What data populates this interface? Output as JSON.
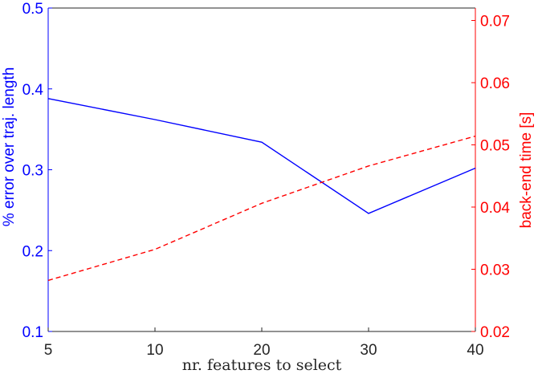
{
  "chart_data": {
    "type": "line",
    "x": [
      5,
      10,
      20,
      30,
      40
    ],
    "x_tick_labels": [
      "5",
      "10",
      "20",
      "30",
      "40"
    ],
    "xlabel": "nr. features to select",
    "ylabel_left": "% error over traj. length",
    "ylabel_right": "back-end time [s]",
    "ylim_left": [
      0.1,
      0.5
    ],
    "ylim_right": [
      0.02,
      0.072
    ],
    "y_ticks_left": [
      "0.1",
      "0.2",
      "0.3",
      "0.4",
      "0.5"
    ],
    "y_ticks_right": [
      "0.02",
      "0.03",
      "0.04",
      "0.05",
      "0.06",
      "0.07"
    ],
    "series": [
      {
        "axis": "left",
        "color": "#0000ff",
        "style": "solid",
        "values": [
          0.388,
          0.362,
          0.334,
          0.246,
          0.302
        ]
      },
      {
        "axis": "right",
        "color": "#ff0000",
        "style": "dashed",
        "values": [
          0.0282,
          0.0332,
          0.0406,
          0.0466,
          0.0514
        ]
      }
    ],
    "grid": false,
    "left_axis_color": "#0000ff",
    "right_axis_color": "#ff0000"
  }
}
